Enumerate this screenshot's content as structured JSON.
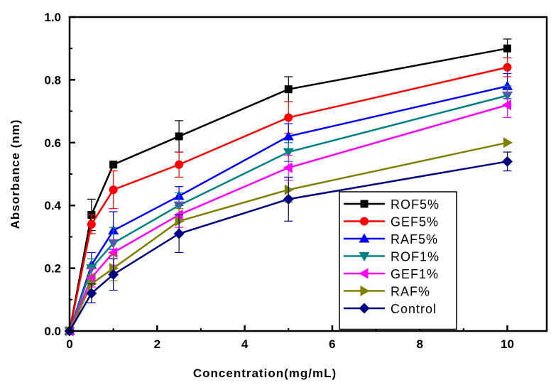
{
  "chart_data": {
    "type": "line",
    "xlabel": "Concentration(mg/mL)",
    "ylabel": "Absorbance (nm)",
    "xlim": [
      0,
      10.9
    ],
    "ylim": [
      0,
      1.0
    ],
    "x_ticks": [
      0,
      2,
      4,
      6,
      8,
      10
    ],
    "y_ticks": [
      0.0,
      0.2,
      0.4,
      0.6,
      0.8,
      1.0
    ],
    "x_tick_labels": [
      "0",
      "2",
      "4",
      "6",
      "8",
      "10"
    ],
    "y_tick_labels": [
      "0.0",
      "0.2",
      "0.4",
      "0.6",
      "0.8",
      "1.0"
    ],
    "grid": false,
    "legend_position": "bottom-right",
    "x": [
      0,
      0.5,
      1,
      2.5,
      5,
      10
    ],
    "series": [
      {
        "name": "ROF5%",
        "color": "#000000",
        "marker": "square",
        "values": [
          0,
          0.37,
          0.53,
          0.62,
          0.77,
          0.9
        ],
        "errors": [
          0,
          0.05,
          0,
          0.05,
          0.04,
          0.03
        ]
      },
      {
        "name": "GEF5%",
        "color": "#ff0000",
        "marker": "circle",
        "values": [
          0,
          0.34,
          0.45,
          0.53,
          0.68,
          0.84
        ],
        "errors": [
          0,
          0.03,
          0.06,
          0.04,
          0.05,
          0.03
        ]
      },
      {
        "name": "RAF5%",
        "color": "#0000ff",
        "marker": "triangle-up",
        "values": [
          0,
          0.21,
          0.32,
          0.43,
          0.62,
          0.78
        ],
        "errors": [
          0,
          0.04,
          0.06,
          0.03,
          0.04,
          0.04
        ]
      },
      {
        "name": "ROF1%",
        "color": "#008080",
        "marker": "triangle-down",
        "values": [
          0,
          0.2,
          0.28,
          0.4,
          0.57,
          0.75
        ],
        "errors": [
          0,
          0.03,
          0.05,
          0.04,
          0.03,
          0.03
        ]
      },
      {
        "name": "GEF1%",
        "color": "#ff00ff",
        "marker": "triangle-left",
        "values": [
          0,
          0.17,
          0.25,
          0.37,
          0.52,
          0.72
        ],
        "errors": [
          0,
          0.03,
          0.04,
          0.04,
          0.04,
          0.04
        ]
      },
      {
        "name": "RAF%",
        "color": "#808000",
        "marker": "triangle-right",
        "values": [
          0,
          0.15,
          0.2,
          0.35,
          0.45,
          0.6
        ],
        "errors": [
          0,
          0.03,
          0.04,
          0.04,
          0.04,
          0
        ]
      },
      {
        "name": "Control",
        "color": "#000080",
        "marker": "diamond",
        "values": [
          0,
          0.12,
          0.18,
          0.31,
          0.42,
          0.54
        ],
        "errors": [
          0,
          0.03,
          0.05,
          0.06,
          0.07,
          0.03
        ]
      }
    ]
  }
}
